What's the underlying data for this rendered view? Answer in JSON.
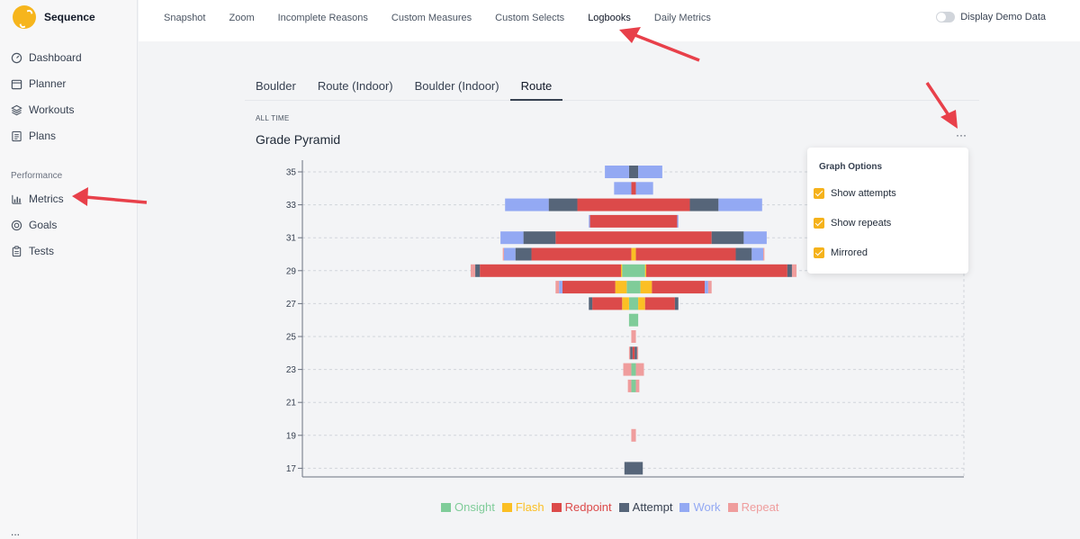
{
  "app": {
    "name": "Sequence"
  },
  "sidebar": {
    "items": [
      {
        "label": "Dashboard",
        "icon": "dashboard-icon"
      },
      {
        "label": "Planner",
        "icon": "calendar-icon"
      },
      {
        "label": "Workouts",
        "icon": "layers-icon"
      },
      {
        "label": "Plans",
        "icon": "list-icon"
      }
    ],
    "section": "Performance",
    "perf_items": [
      {
        "label": "Metrics",
        "icon": "bar-chart-icon"
      },
      {
        "label": "Goals",
        "icon": "target-icon"
      },
      {
        "label": "Tests",
        "icon": "clipboard-icon"
      }
    ],
    "more": "..."
  },
  "topnav": {
    "items": [
      "Snapshot",
      "Zoom",
      "Incomplete Reasons",
      "Custom Measures",
      "Custom Selects",
      "Logbooks",
      "Daily Metrics"
    ],
    "active": "Logbooks",
    "demo_label": "Display Demo Data"
  },
  "subtabs": {
    "items": [
      "Boulder",
      "Route (Indoor)",
      "Boulder (Indoor)",
      "Route"
    ],
    "active": "Route"
  },
  "chart_header": {
    "period": "ALL TIME",
    "title": "Grade Pyramid",
    "more": "···"
  },
  "options": {
    "title": "Graph Options",
    "items": [
      "Show attempts",
      "Show repeats",
      "Mirrored"
    ]
  },
  "colors": {
    "Onsight": "#7fcc99",
    "Flash": "#fbbf24",
    "Redpoint": "#dc4a4a",
    "Attempt": "#566579",
    "Work": "#93a9f3",
    "Repeat": "#ef9d9d"
  },
  "chart_data": {
    "type": "bar",
    "mirrored": true,
    "grid": true,
    "legend_position": "bottom",
    "ylabel_ticks": [
      "35",
      "33",
      "31",
      "29",
      "27",
      "25",
      "23",
      "21",
      "19",
      "17"
    ],
    "series_order": [
      "Onsight",
      "Flash",
      "Redpoint",
      "Attempt",
      "Work",
      "Repeat"
    ],
    "grades": [
      {
        "grade": 35,
        "Onsight": 0,
        "Flash": 0,
        "Redpoint": 0,
        "Attempt": 4,
        "Work": 21,
        "Repeat": 0
      },
      {
        "grade": 34,
        "Onsight": 0,
        "Flash": 0,
        "Redpoint": 2,
        "Attempt": 0,
        "Work": 15,
        "Repeat": 0
      },
      {
        "grade": 33,
        "Onsight": 0,
        "Flash": 0,
        "Redpoint": 49,
        "Attempt": 25,
        "Work": 38,
        "Repeat": 0
      },
      {
        "grade": 32,
        "Onsight": 0,
        "Flash": 0,
        "Redpoint": 38,
        "Attempt": 0,
        "Work": 1,
        "Repeat": 0
      },
      {
        "grade": 31,
        "Onsight": 0,
        "Flash": 0,
        "Redpoint": 68,
        "Attempt": 28,
        "Work": 20,
        "Repeat": 0
      },
      {
        "grade": 30,
        "Onsight": 0,
        "Flash": 2,
        "Redpoint": 87,
        "Attempt": 14,
        "Work": 10,
        "Repeat": 1
      },
      {
        "grade": 29,
        "Onsight": 10,
        "Flash": 1,
        "Redpoint": 123,
        "Attempt": 4,
        "Work": 0,
        "Repeat": 4
      },
      {
        "grade": 28,
        "Onsight": 6,
        "Flash": 10,
        "Redpoint": 46,
        "Attempt": 0,
        "Work": 3,
        "Repeat": 3
      },
      {
        "grade": 27,
        "Onsight": 4,
        "Flash": 6,
        "Redpoint": 26,
        "Attempt": 3,
        "Work": 0,
        "Repeat": 0
      },
      {
        "grade": 26,
        "Onsight": 4,
        "Flash": 0,
        "Redpoint": 0,
        "Attempt": 0,
        "Work": 0,
        "Repeat": 0
      },
      {
        "grade": 25,
        "Onsight": 0,
        "Flash": 0,
        "Redpoint": 0,
        "Attempt": 0,
        "Work": 0,
        "Repeat": 2
      },
      {
        "grade": 24,
        "Onsight": 0,
        "Flash": 0,
        "Redpoint": 1,
        "Attempt": 2,
        "Work": 0,
        "Repeat": 1
      },
      {
        "grade": 23,
        "Onsight": 2,
        "Flash": 0,
        "Redpoint": 0,
        "Attempt": 0,
        "Work": 0,
        "Repeat": 7
      },
      {
        "grade": 22,
        "Onsight": 2,
        "Flash": 0,
        "Redpoint": 0,
        "Attempt": 0,
        "Work": 0,
        "Repeat": 3
      },
      {
        "grade": 21,
        "Onsight": 0,
        "Flash": 0,
        "Redpoint": 0,
        "Attempt": 0,
        "Work": 0,
        "Repeat": 0
      },
      {
        "grade": 20,
        "Onsight": 0,
        "Flash": 0,
        "Redpoint": 0,
        "Attempt": 0,
        "Work": 0,
        "Repeat": 0
      },
      {
        "grade": 19,
        "Onsight": 0,
        "Flash": 0,
        "Redpoint": 0,
        "Attempt": 0,
        "Work": 0,
        "Repeat": 2
      },
      {
        "grade": 18,
        "Onsight": 0,
        "Flash": 0,
        "Redpoint": 0,
        "Attempt": 0,
        "Work": 0,
        "Repeat": 0
      },
      {
        "grade": 17,
        "Onsight": 0,
        "Flash": 0,
        "Redpoint": 0,
        "Attempt": 8,
        "Work": 0,
        "Repeat": 0
      }
    ]
  }
}
